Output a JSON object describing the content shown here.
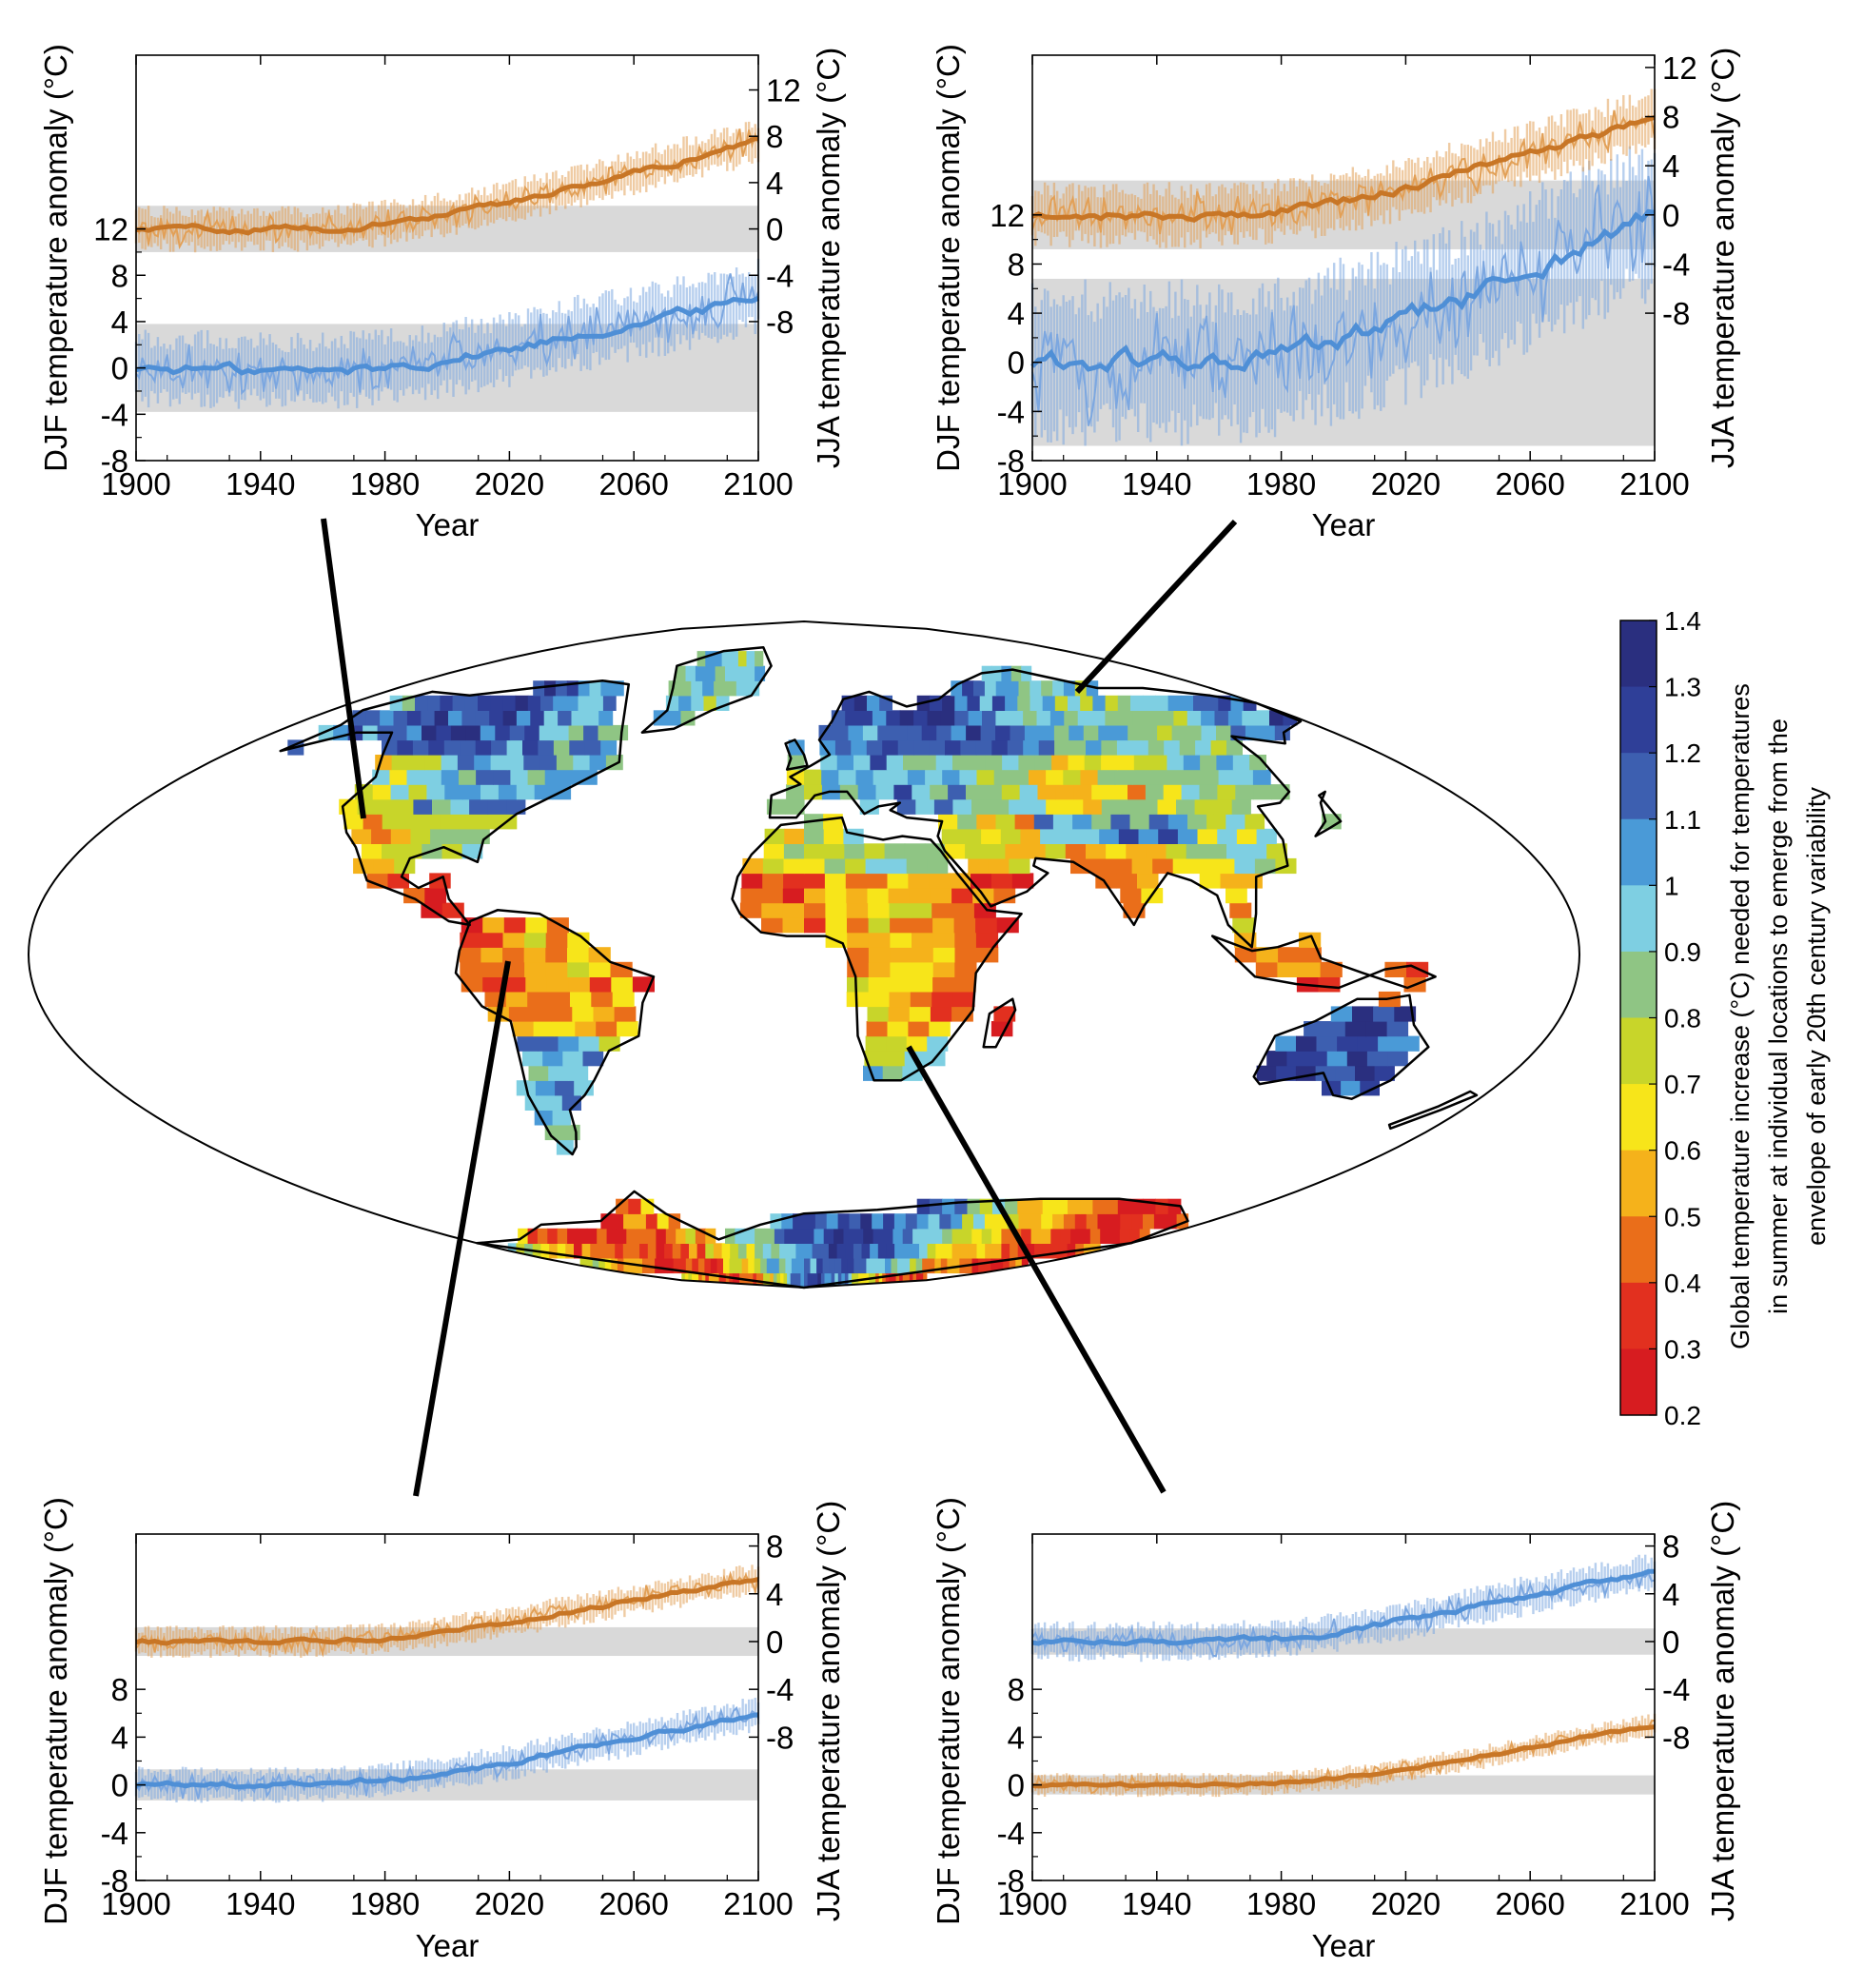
{
  "figure": {
    "connector_color": "#000000"
  },
  "colors": {
    "djf_raw": "#7ca7e0",
    "djf_smooth": "#4f8fd6",
    "jja_raw": "#e2a057",
    "jja_smooth": "#c87626",
    "envelope": "#d9d9d9",
    "map_ocean": "#ffffff"
  },
  "chart_data": [
    {
      "type": "line",
      "panel": "top-left",
      "xlabel": "Year",
      "ylabel_left": "DJF temperature anomaly (°C)",
      "ylabel_right": "JJA temperature anomaly (°C)",
      "x_ticks": [
        "1900",
        "1940",
        "1980",
        "2020",
        "2060",
        "2100"
      ],
      "left_ticks": [
        "-8",
        "-4",
        "0",
        "4",
        "8",
        "12"
      ],
      "right_ticks": [
        "-8",
        "-4",
        "0",
        "4",
        "8",
        "12"
      ],
      "xlim": [
        1900,
        2100
      ],
      "ylim_left": [
        -8,
        27
      ],
      "right_offset": 12,
      "grid": false,
      "series": [
        {
          "name": "DJF",
          "axis": "left",
          "color": "blue",
          "envelope": [
            -3.8,
            3.8
          ],
          "noise": 2.0,
          "trend": [
            [
              1900,
              0
            ],
            [
              1960,
              -0.3
            ],
            [
              1980,
              0
            ],
            [
              2000,
              0.8
            ],
            [
              2020,
              1.6
            ],
            [
              2040,
              2.8
            ],
            [
              2060,
              3.9
            ],
            [
              2080,
              4.9
            ],
            [
              2100,
              6.2
            ]
          ]
        },
        {
          "name": "JJA",
          "axis": "right",
          "color": "orange",
          "envelope": [
            -2.0,
            2.0
          ],
          "noise": 1.2,
          "trend": [
            [
              1900,
              0
            ],
            [
              1960,
              0
            ],
            [
              1980,
              0.5
            ],
            [
              2000,
              1.2
            ],
            [
              2020,
              2.3
            ],
            [
              2040,
              3.6
            ],
            [
              2060,
              4.9
            ],
            [
              2080,
              6.2
            ],
            [
              2100,
              7.6
            ]
          ]
        }
      ]
    },
    {
      "type": "line",
      "panel": "top-right",
      "xlabel": "Year",
      "ylabel_left": "DJF temperature anomaly (°C)",
      "ylabel_right": "JJA temperature anomaly (°C)",
      "x_ticks": [
        "1900",
        "1940",
        "1980",
        "2020",
        "2060",
        "2100"
      ],
      "left_ticks": [
        "-8",
        "-4",
        "0",
        "4",
        "8",
        "12"
      ],
      "right_ticks": [
        "-8",
        "-4",
        "0",
        "4",
        "8",
        "12"
      ],
      "xlim": [
        1900,
        2100
      ],
      "ylim_left": [
        -8,
        25
      ],
      "right_offset": 12,
      "grid": false,
      "series": [
        {
          "name": "DJF",
          "axis": "left",
          "color": "blue",
          "envelope": [
            -6.8,
            6.8
          ],
          "noise": 4.0,
          "trend": [
            [
              1900,
              0
            ],
            [
              1960,
              0
            ],
            [
              1980,
              0.5
            ],
            [
              2000,
              1.8
            ],
            [
              2020,
              3.3
            ],
            [
              2040,
              5.2
            ],
            [
              2060,
              7.4
            ],
            [
              2080,
              9.8
            ],
            [
              2100,
              11.8
            ]
          ]
        },
        {
          "name": "JJA",
          "axis": "right",
          "color": "orange",
          "envelope": [
            -2.8,
            2.8
          ],
          "noise": 1.6,
          "trend": [
            [
              1900,
              0
            ],
            [
              1960,
              0
            ],
            [
              1980,
              0.4
            ],
            [
              2000,
              1.1
            ],
            [
              2020,
              2.2
            ],
            [
              2040,
              3.6
            ],
            [
              2060,
              5.0
            ],
            [
              2080,
              6.4
            ],
            [
              2100,
              7.8
            ]
          ]
        }
      ]
    },
    {
      "type": "line",
      "panel": "bottom-left",
      "xlabel": "Year",
      "ylabel_left": "DJF temperature anomaly (°C)",
      "ylabel_right": "JJA temperature anomaly (°C)",
      "x_ticks": [
        "1900",
        "1940",
        "1980",
        "2020",
        "2060",
        "2100"
      ],
      "left_ticks": [
        "-8",
        "-4",
        "0",
        "4",
        "8"
      ],
      "right_ticks": [
        "-8",
        "-4",
        "0",
        "4",
        "8"
      ],
      "xlim": [
        1900,
        2100
      ],
      "ylim_left": [
        -8,
        21
      ],
      "right_offset": 12,
      "grid": false,
      "series": [
        {
          "name": "DJF",
          "axis": "left",
          "color": "blue",
          "envelope": [
            -1.3,
            1.3
          ],
          "noise": 0.9,
          "trend": [
            [
              1900,
              0
            ],
            [
              1960,
              0
            ],
            [
              1980,
              0.4
            ],
            [
              2000,
              1.0
            ],
            [
              2020,
              1.9
            ],
            [
              2040,
              2.9
            ],
            [
              2060,
              3.9
            ],
            [
              2080,
              4.9
            ],
            [
              2100,
              6.0
            ]
          ]
        },
        {
          "name": "JJA",
          "axis": "right",
          "color": "orange",
          "envelope": [
            -1.2,
            1.2
          ],
          "noise": 0.8,
          "trend": [
            [
              1900,
              0
            ],
            [
              1960,
              0
            ],
            [
              1980,
              0.3
            ],
            [
              2000,
              0.9
            ],
            [
              2020,
              1.7
            ],
            [
              2040,
              2.6
            ],
            [
              2060,
              3.5
            ],
            [
              2080,
              4.4
            ],
            [
              2100,
              5.3
            ]
          ]
        }
      ]
    },
    {
      "type": "line",
      "panel": "bottom-right",
      "xlabel": "Year",
      "ylabel_left": "DJF temperature anomaly (°C)",
      "ylabel_right": "JJA temperature anomaly (°C)",
      "x_ticks": [
        "1900",
        "1940",
        "1980",
        "2020",
        "2060",
        "2100"
      ],
      "left_ticks": [
        "-8",
        "-4",
        "0",
        "4",
        "8"
      ],
      "right_ticks": [
        "-8",
        "-4",
        "0",
        "4",
        "8"
      ],
      "xlim": [
        1900,
        2100
      ],
      "ylim_left": [
        -8,
        21
      ],
      "right_offset": 12,
      "grid": false,
      "series": [
        {
          "name": "DJF",
          "axis": "left",
          "color": "orange",
          "envelope": [
            -0.8,
            0.8
          ],
          "noise": 0.6,
          "trend": [
            [
              1900,
              0
            ],
            [
              1960,
              0
            ],
            [
              1980,
              0.2
            ],
            [
              2000,
              0.6
            ],
            [
              2020,
              1.3
            ],
            [
              2040,
              2.1
            ],
            [
              2060,
              3.1
            ],
            [
              2080,
              4.1
            ],
            [
              2100,
              5.0
            ]
          ]
        },
        {
          "name": "JJA",
          "axis": "right",
          "color": "blue",
          "envelope": [
            -1.1,
            1.1
          ],
          "noise": 1.0,
          "trend": [
            [
              1900,
              0
            ],
            [
              1960,
              0
            ],
            [
              1980,
              0.3
            ],
            [
              2000,
              0.9
            ],
            [
              2020,
              1.8
            ],
            [
              2040,
              2.8
            ],
            [
              2060,
              3.9
            ],
            [
              2080,
              4.9
            ],
            [
              2100,
              5.8
            ]
          ]
        }
      ]
    },
    {
      "type": "heatmap",
      "panel": "world-map",
      "colorbar": {
        "title_lines": [
          "Global temperature increase (°C) needed for temperatures",
          "in summer at individual locations to emerge from the",
          "envelope of early 20th century variability"
        ],
        "ticks": [
          "1.4",
          "1.3",
          "1.2",
          "1.1",
          "1",
          "0.9",
          "0.8",
          "0.7",
          "0.6",
          "0.5",
          "0.4",
          "0.3",
          "0.2"
        ],
        "range": [
          0.2,
          1.4
        ],
        "colors": [
          "#2a2f7f",
          "#2f3f98",
          "#3d5fb0",
          "#4a9ad7",
          "#7ecfe2",
          "#8fc584",
          "#c8d52a",
          "#f7e51a",
          "#f5b21b",
          "#ea6e1a",
          "#e2301f",
          "#d71c20"
        ]
      }
    }
  ]
}
